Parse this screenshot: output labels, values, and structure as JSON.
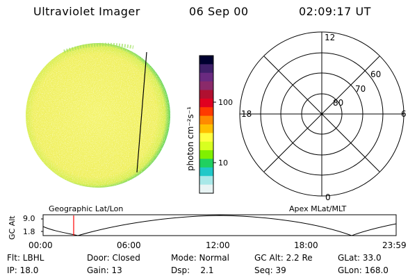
{
  "header": {
    "instrument": "Ultraviolet Imager",
    "date": "06 Sep 00",
    "time": "02:09:17 UT"
  },
  "colorbar": {
    "unit_label": "photon cm⁻²s⁻¹",
    "ticks": [
      "100",
      "10"
    ],
    "colors": [
      "#000030",
      "#40206a",
      "#6a2a80",
      "#8a2a6a",
      "#b01030",
      "#e00020",
      "#ff3a00",
      "#ff8a00",
      "#ffc000",
      "#ffff40",
      "#d8ff20",
      "#80f000",
      "#20d060",
      "#20c8c8",
      "#a8e8e8",
      "#e8f4f4"
    ]
  },
  "polar_plot": {
    "mlt_labels": [
      "12",
      "18",
      "6",
      "0"
    ],
    "lat_labels": [
      "60",
      "70",
      "80"
    ]
  },
  "plot_labels": {
    "left": "Geographic Lat/Lon",
    "right": "Apex MLat/MLT"
  },
  "orbit_plot": {
    "ylabel": "GC Alt",
    "yticks": [
      "9.0",
      "1.8"
    ],
    "xticks": [
      "00:00",
      "06:00",
      "12:00",
      "18:00",
      "23:59"
    ],
    "marker_color": "#ff0000"
  },
  "info_grid": [
    [
      {
        "text": "Flt: LBHL"
      },
      {
        "text": "Door: Closed"
      },
      {
        "text": "Mode: Normal"
      },
      {
        "text": "GC Alt: 2.2 Re"
      },
      {
        "text": "GLat: 33.0"
      }
    ],
    [
      {
        "text": "IP: 18.0"
      },
      {
        "text": "Gain: 13"
      },
      {
        "text": "Dsp:    2.1"
      },
      {
        "text": "Seq: 39"
      },
      {
        "text": "GLon: 168.0"
      }
    ]
  ],
  "colors": {
    "disk_base": "#f2f270",
    "disk_edge": "#5ad25a",
    "terminator": "#000000"
  }
}
